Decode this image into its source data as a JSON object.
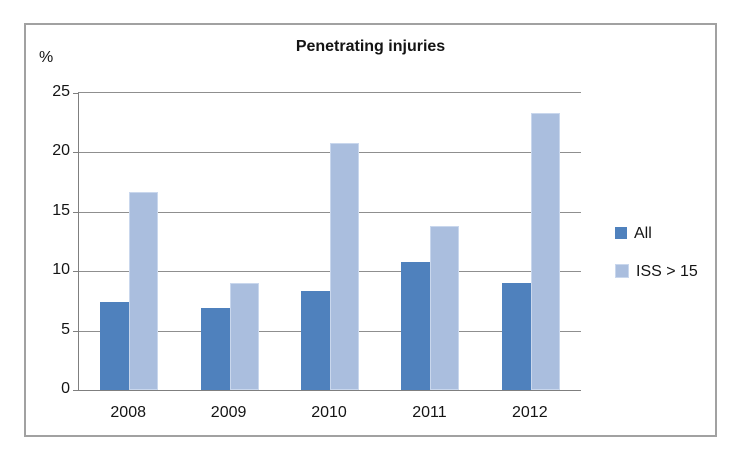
{
  "figure": {
    "title": "Penetrating injuries",
    "y_axis_unit": "%"
  },
  "chart_data": {
    "type": "bar",
    "title": "Penetrating injuries",
    "categories": [
      "2008",
      "2009",
      "2010",
      "2011",
      "2012"
    ],
    "series": [
      {
        "name": "All",
        "color": "#4f81bd",
        "values": [
          7.4,
          6.9,
          8.3,
          10.8,
          9.0
        ]
      },
      {
        "name": "ISS > 15",
        "color": "#aabede",
        "values": [
          16.7,
          9.0,
          20.8,
          13.8,
          23.3
        ]
      }
    ],
    "xlabel": "",
    "ylabel": "%",
    "ylim": [
      0,
      25
    ],
    "yticks": [
      0,
      5,
      10,
      15,
      20,
      25
    ],
    "grid": true,
    "legend_position": "right"
  },
  "colors": {
    "series_all": "#4f81bd",
    "series_iss": "#aabede",
    "series_iss_border": "#c9d7ed",
    "gridline": "#8f8f8f",
    "axis": "#7f7f7f",
    "frame_border": "#a1a1a1",
    "text": "#141414"
  }
}
